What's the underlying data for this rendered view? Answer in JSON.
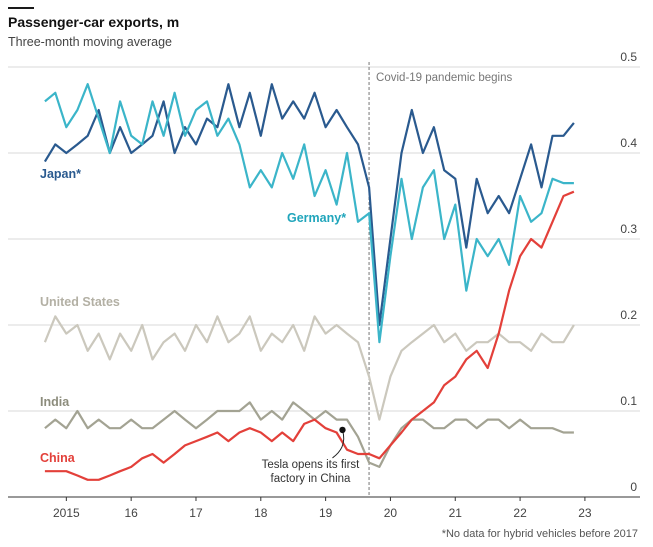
{
  "chart_data": {
    "type": "line",
    "title": "Passenger-car exports, m",
    "subtitle": "Three-month moving average",
    "footnote": "*No data for hybrid vehicles before 2017",
    "x": [
      2015.17,
      2015.33,
      2015.5,
      2015.67,
      2015.83,
      2016.0,
      2016.17,
      2016.33,
      2016.5,
      2016.67,
      2016.83,
      2017.0,
      2017.17,
      2017.33,
      2017.5,
      2017.67,
      2017.83,
      2018.0,
      2018.17,
      2018.33,
      2018.5,
      2018.67,
      2018.83,
      2019.0,
      2019.17,
      2019.33,
      2019.5,
      2019.67,
      2019.83,
      2020.0,
      2020.17,
      2020.33,
      2020.5,
      2020.67,
      2020.83,
      2021.0,
      2021.17,
      2021.33,
      2021.5,
      2021.67,
      2021.83,
      2022.0,
      2022.17,
      2022.33,
      2022.5,
      2022.67,
      2022.83,
      2023.0,
      2023.17,
      2023.33
    ],
    "series": [
      {
        "name": "Japan*",
        "color": "#2a5a8f",
        "values": [
          0.39,
          0.41,
          0.4,
          0.41,
          0.42,
          0.45,
          0.4,
          0.43,
          0.4,
          0.41,
          0.42,
          0.46,
          0.4,
          0.43,
          0.41,
          0.44,
          0.43,
          0.48,
          0.43,
          0.47,
          0.42,
          0.48,
          0.44,
          0.46,
          0.44,
          0.47,
          0.43,
          0.45,
          0.43,
          0.41,
          0.36,
          0.2,
          0.3,
          0.4,
          0.45,
          0.4,
          0.43,
          0.38,
          0.37,
          0.29,
          0.37,
          0.33,
          0.35,
          0.33,
          0.37,
          0.41,
          0.36,
          0.42,
          0.42,
          0.435
        ]
      },
      {
        "name": "Germany*",
        "color": "#3bb5c9",
        "values": [
          0.46,
          0.47,
          0.43,
          0.45,
          0.48,
          0.44,
          0.4,
          0.46,
          0.42,
          0.41,
          0.46,
          0.42,
          0.47,
          0.42,
          0.45,
          0.46,
          0.42,
          0.44,
          0.41,
          0.36,
          0.38,
          0.36,
          0.4,
          0.37,
          0.41,
          0.35,
          0.38,
          0.34,
          0.4,
          0.32,
          0.33,
          0.18,
          0.28,
          0.37,
          0.3,
          0.36,
          0.38,
          0.3,
          0.34,
          0.24,
          0.3,
          0.28,
          0.3,
          0.27,
          0.35,
          0.32,
          0.33,
          0.37,
          0.365,
          0.365
        ]
      },
      {
        "name": "United States",
        "color": "#cbc8bd",
        "values": [
          0.18,
          0.21,
          0.19,
          0.2,
          0.17,
          0.19,
          0.16,
          0.19,
          0.17,
          0.2,
          0.16,
          0.18,
          0.19,
          0.17,
          0.2,
          0.18,
          0.21,
          0.18,
          0.19,
          0.21,
          0.17,
          0.19,
          0.18,
          0.2,
          0.17,
          0.21,
          0.19,
          0.2,
          0.19,
          0.18,
          0.14,
          0.09,
          0.14,
          0.17,
          0.18,
          0.19,
          0.2,
          0.18,
          0.19,
          0.17,
          0.18,
          0.18,
          0.19,
          0.18,
          0.18,
          0.17,
          0.19,
          0.18,
          0.18,
          0.2
        ]
      },
      {
        "name": "India",
        "color": "#a3a393",
        "values": [
          0.08,
          0.09,
          0.08,
          0.1,
          0.08,
          0.09,
          0.08,
          0.08,
          0.09,
          0.08,
          0.08,
          0.09,
          0.1,
          0.09,
          0.08,
          0.09,
          0.1,
          0.1,
          0.1,
          0.11,
          0.09,
          0.1,
          0.09,
          0.11,
          0.1,
          0.09,
          0.1,
          0.09,
          0.09,
          0.07,
          0.04,
          0.035,
          0.06,
          0.08,
          0.09,
          0.09,
          0.08,
          0.08,
          0.09,
          0.09,
          0.08,
          0.09,
          0.09,
          0.08,
          0.09,
          0.08,
          0.08,
          0.08,
          0.075,
          0.075
        ]
      },
      {
        "name": "China",
        "color": "#e3403a",
        "values": [
          0.03,
          0.03,
          0.03,
          0.025,
          0.02,
          0.02,
          0.025,
          0.03,
          0.035,
          0.045,
          0.05,
          0.04,
          0.05,
          0.06,
          0.065,
          0.07,
          0.075,
          0.065,
          0.075,
          0.08,
          0.075,
          0.065,
          0.075,
          0.065,
          0.085,
          0.09,
          0.08,
          0.075,
          0.055,
          0.05,
          0.05,
          0.045,
          0.06,
          0.075,
          0.09,
          0.1,
          0.11,
          0.13,
          0.14,
          0.16,
          0.17,
          0.15,
          0.19,
          0.24,
          0.28,
          0.3,
          0.29,
          0.32,
          0.35,
          0.355
        ]
      }
    ],
    "xlim": [
      2014.6,
      2024.35
    ],
    "xticks": [
      {
        "value": 2015.5,
        "label": "2015"
      },
      {
        "value": 2016.5,
        "label": "16"
      },
      {
        "value": 2017.5,
        "label": "17"
      },
      {
        "value": 2018.5,
        "label": "18"
      },
      {
        "value": 2019.5,
        "label": "19"
      },
      {
        "value": 2020.5,
        "label": "20"
      },
      {
        "value": 2021.5,
        "label": "21"
      },
      {
        "value": 2022.5,
        "label": "22"
      },
      {
        "value": 2023.5,
        "label": "23"
      }
    ],
    "ylim": [
      0,
      0.5
    ],
    "yticks": [
      0,
      0.1,
      0.2,
      0.3,
      0.4,
      0.5
    ],
    "grid": true,
    "annotations": [
      {
        "type": "vline",
        "x": 2020.17,
        "label": "Covid-19 pandemic begins"
      },
      {
        "type": "point",
        "x": 2019.76,
        "y": 0.078,
        "label_lines": [
          "Tesla opens its first",
          "factory in China"
        ]
      }
    ]
  }
}
